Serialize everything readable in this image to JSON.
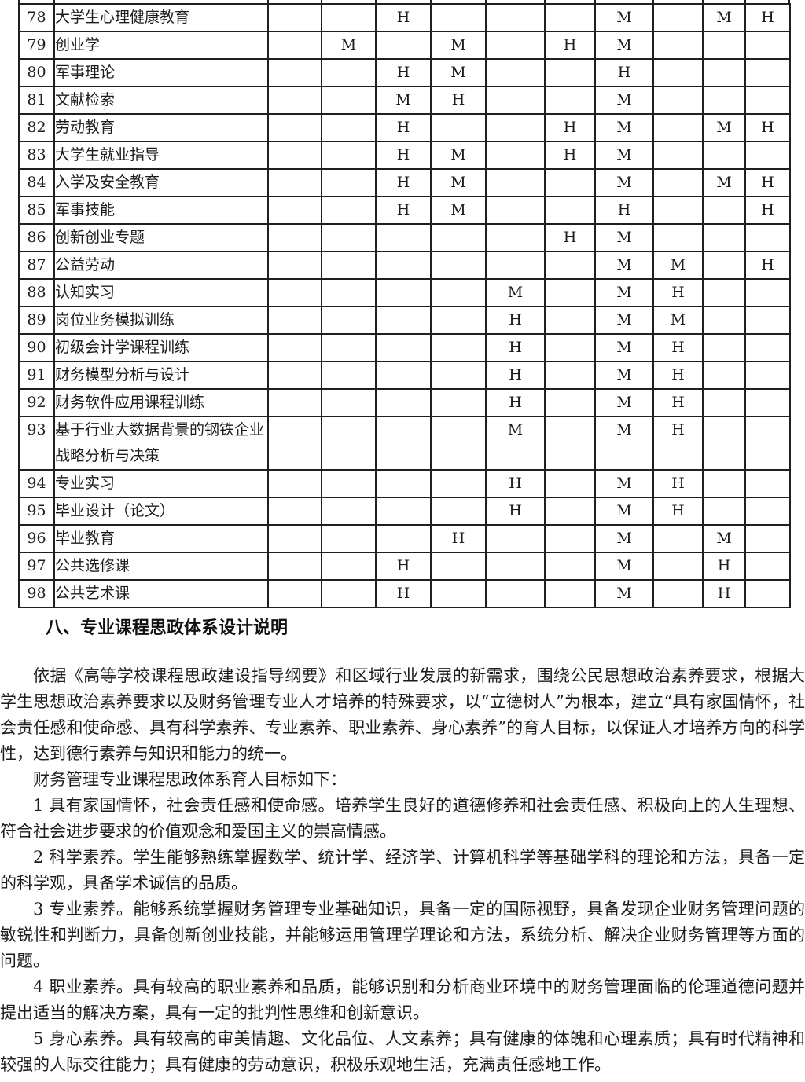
{
  "table": {
    "mark_values_used": [
      "H",
      "M"
    ],
    "columns": [
      "num",
      "course_name",
      "c1",
      "c2",
      "c3",
      "c4",
      "c5",
      "c6",
      "c7",
      "c8",
      "c9",
      "c10"
    ],
    "rows": [
      {
        "num": "78",
        "name": "大学生心理健康教育",
        "marks": [
          "",
          "",
          "H",
          "",
          "",
          "",
          "M",
          "",
          "M",
          "H"
        ]
      },
      {
        "num": "79",
        "name": "创业学",
        "marks": [
          "",
          "M",
          "",
          "M",
          "",
          "H",
          "M",
          "",
          "",
          ""
        ]
      },
      {
        "num": "80",
        "name": "军事理论",
        "marks": [
          "",
          "",
          "H",
          "M",
          "",
          "",
          "H",
          "",
          "",
          ""
        ]
      },
      {
        "num": "81",
        "name": "文献检索",
        "marks": [
          "",
          "",
          "M",
          "H",
          "",
          "",
          "M",
          "",
          "",
          ""
        ]
      },
      {
        "num": "82",
        "name": "劳动教育",
        "marks": [
          "",
          "",
          "H",
          "",
          "",
          "H",
          "M",
          "",
          "M",
          "H"
        ]
      },
      {
        "num": "83",
        "name": "大学生就业指导",
        "marks": [
          "",
          "",
          "H",
          "M",
          "",
          "H",
          "M",
          "",
          "",
          ""
        ]
      },
      {
        "num": "84",
        "name": "入学及安全教育",
        "marks": [
          "",
          "",
          "H",
          "M",
          "",
          "",
          "M",
          "",
          "M",
          "H"
        ]
      },
      {
        "num": "85",
        "name": "军事技能",
        "marks": [
          "",
          "",
          "H",
          "M",
          "",
          "",
          "H",
          "",
          "",
          "H"
        ]
      },
      {
        "num": "86",
        "name": "创新创业专题",
        "marks": [
          "",
          "",
          "",
          "",
          "",
          "H",
          "M",
          "",
          "",
          ""
        ]
      },
      {
        "num": "87",
        "name": "公益劳动",
        "marks": [
          "",
          "",
          "",
          "",
          "",
          "",
          "M",
          "M",
          "",
          "H"
        ]
      },
      {
        "num": "88",
        "name": "认知实习",
        "marks": [
          "",
          "",
          "",
          "",
          "M",
          "",
          "M",
          "H",
          "",
          ""
        ]
      },
      {
        "num": "89",
        "name": "岗位业务模拟训练",
        "marks": [
          "",
          "",
          "",
          "",
          "H",
          "",
          "M",
          "M",
          "",
          ""
        ]
      },
      {
        "num": "90",
        "name": "初级会计学课程训练",
        "marks": [
          "",
          "",
          "",
          "",
          "H",
          "",
          "M",
          "H",
          "",
          ""
        ]
      },
      {
        "num": "91",
        "name": "财务模型分析与设计",
        "marks": [
          "",
          "",
          "",
          "",
          "H",
          "",
          "M",
          "H",
          "",
          ""
        ]
      },
      {
        "num": "92",
        "name": "财务软件应用课程训练",
        "marks": [
          "",
          "",
          "",
          "",
          "H",
          "",
          "M",
          "H",
          "",
          ""
        ]
      },
      {
        "num": "93",
        "name": "基于行业大数据背景的钢铁企业战略分析与决策",
        "marks": [
          "",
          "",
          "",
          "",
          "M",
          "",
          "M",
          "H",
          "",
          ""
        ]
      },
      {
        "num": "94",
        "name": "专业实习",
        "marks": [
          "",
          "",
          "",
          "",
          "H",
          "",
          "M",
          "H",
          "",
          ""
        ]
      },
      {
        "num": "95",
        "name": "毕业设计（论文）",
        "marks": [
          "",
          "",
          "",
          "",
          "H",
          "",
          "M",
          "H",
          "",
          ""
        ]
      },
      {
        "num": "96",
        "name": "毕业教育",
        "marks": [
          "",
          "",
          "",
          "H",
          "",
          "",
          "M",
          "",
          "M",
          ""
        ]
      },
      {
        "num": "97",
        "name": "公共选修课",
        "marks": [
          "",
          "",
          "H",
          "",
          "",
          "",
          "M",
          "",
          "H",
          ""
        ]
      },
      {
        "num": "98",
        "name": "公共艺术课",
        "marks": [
          "",
          "",
          "H",
          "",
          "",
          "",
          "M",
          "",
          "H",
          ""
        ]
      }
    ]
  },
  "section": {
    "heading": "八、专业课程思政体系设计说明",
    "paragraphs": [
      "依据《高等学校课程思政建设指导纲要》和区域行业发展的新需求，围绕公民思想政治素养要求，根据大学生思想政治素养要求以及财务管理专业人才培养的特殊要求，以“立德树人”为根本，建立“具有家国情怀，社会责任感和使命感、具有科学素养、专业素养、职业素养、身心素养”的育人目标，以保证人才培养方向的科学性，达到德行素养与知识和能力的统一。",
      "财务管理专业课程思政体系育人目标如下：",
      "1 具有家国情怀，社会责任感和使命感。培养学生良好的道德修养和社会责任感、积极向上的人生理想、符合社会进步要求的价值观念和爱国主义的崇高情感。",
      "2 科学素养。学生能够熟练掌握数学、统计学、经济学、计算机科学等基础学科的理论和方法，具备一定的科学观，具备学术诚信的品质。",
      "3 专业素养。能够系统掌握财务管理专业基础知识，具备一定的国际视野，具备发现企业财务管理问题的敏锐性和判断力，具备创新创业技能，并能够运用管理学理论和方法，系统分析、解决企业财务管理等方面的问题。",
      "4 职业素养。具有较高的职业素养和品质，能够识别和分析商业环境中的财务管理面临的伦理道德问题并提出适当的解决方案，具有一定的批判性思维和创新意识。",
      "5 身心素养。具有较高的审美情趣、文化品位、人文素养；具有健康的体魄和心理素质；具有时代精神和较强的人际交往能力；具有健康的劳动意识，积极乐观地生活，充满责任感地工作。"
    ]
  }
}
